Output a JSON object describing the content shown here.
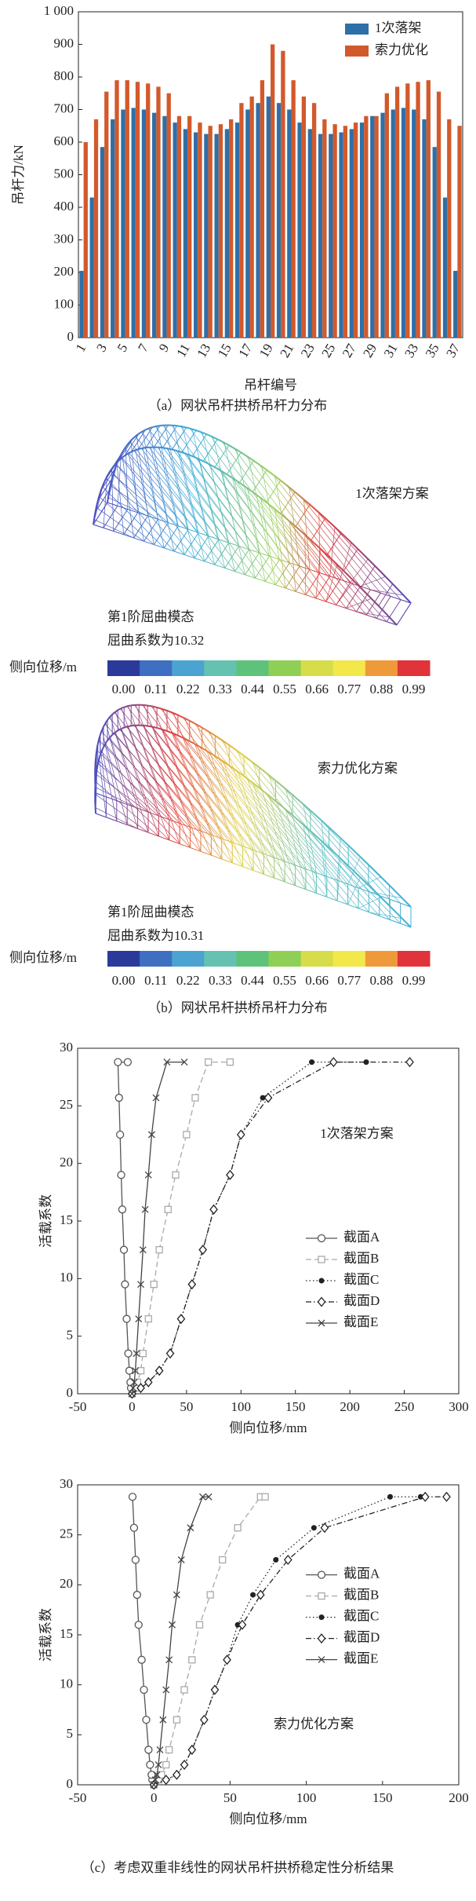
{
  "chart_data": [
    {
      "type": "bar",
      "ylabel": "吊杆力/kN",
      "xlabel": "吊杆编号",
      "caption": "（a）网状吊杆拱桥吊杆力分布",
      "categories": [
        "1",
        null,
        "3",
        null,
        "5",
        null,
        "7",
        null,
        "9",
        null,
        "11",
        null,
        "13",
        null,
        "15",
        null,
        "17",
        null,
        "19",
        null,
        "21",
        null,
        "23",
        null,
        "25",
        null,
        "27",
        null,
        "29",
        null,
        "31",
        null,
        "33",
        null,
        "35",
        null,
        "37"
      ],
      "series": [
        {
          "name": "1次落架",
          "color": "#2f6fa7",
          "values": [
            205,
            430,
            585,
            670,
            700,
            705,
            700,
            690,
            680,
            660,
            640,
            630,
            625,
            625,
            640,
            660,
            700,
            720,
            740,
            720,
            700,
            660,
            640,
            625,
            625,
            630,
            640,
            660,
            680,
            690,
            700,
            705,
            700,
            670,
            585,
            430,
            205
          ]
        },
        {
          "name": "索力优化",
          "color": "#d2592b",
          "values": [
            600,
            670,
            755,
            790,
            790,
            785,
            780,
            770,
            750,
            680,
            680,
            660,
            650,
            655,
            670,
            720,
            740,
            790,
            900,
            880,
            790,
            740,
            720,
            670,
            655,
            650,
            660,
            680,
            680,
            750,
            770,
            780,
            785,
            790,
            755,
            670,
            650
          ]
        }
      ],
      "ylim": [
        0,
        1000
      ],
      "yticks": [
        0,
        100,
        200,
        300,
        400,
        500,
        600,
        700,
        800,
        900,
        {
          "value": 1000,
          "label": "1 000"
        }
      ],
      "legend": "upper right"
    },
    {
      "type": "line",
      "ylabel": "活载系数",
      "xlabel": "侧向位移/mm",
      "annotation": "1次落架方案",
      "xlim": [
        -50,
        300
      ],
      "xticks": [
        -50,
        0,
        50,
        100,
        150,
        200,
        250,
        300
      ],
      "ylim": [
        0,
        30
      ],
      "yticks": [
        0,
        5,
        10,
        15,
        20,
        25,
        30
      ],
      "legend": "center right",
      "series": [
        {
          "name": "截面A",
          "color": "#555555",
          "dash": "solid",
          "marker": "circle",
          "x": [
            0,
            -1,
            -1.5,
            -2.5,
            -3.5,
            -5,
            -6.5,
            -7.5,
            -9,
            -10,
            -11,
            -12,
            -13,
            -4
          ],
          "values": [
            0,
            0.5,
            1,
            2,
            3.5,
            6.5,
            9.5,
            12.5,
            16,
            19,
            22.5,
            25.7,
            28.8,
            28.8
          ]
        },
        {
          "name": "截面B",
          "color": "#aaaaaa",
          "dash": "dashed",
          "marker": "square",
          "x": [
            0,
            3,
            5,
            8,
            10,
            15,
            20,
            25,
            33,
            40,
            50,
            58,
            70,
            90
          ],
          "values": [
            0,
            0.5,
            1,
            2,
            3.5,
            6.5,
            9.5,
            12.5,
            16,
            19,
            22.5,
            25.7,
            28.8,
            28.8
          ]
        },
        {
          "name": "截面C",
          "color": "#222222",
          "dash": "dotted",
          "marker": "dot",
          "x": [
            0,
            8,
            15,
            25,
            35,
            45,
            55,
            65,
            75,
            90,
            100,
            120,
            165,
            215
          ],
          "values": [
            0,
            0.5,
            1,
            2,
            3.5,
            6.5,
            9.5,
            12.5,
            16,
            19,
            22.5,
            25.7,
            28.8,
            28.8
          ]
        },
        {
          "name": "截面D",
          "color": "#222222",
          "dash": "dashdot",
          "marker": "diamond",
          "x": [
            0,
            8,
            15,
            25,
            35,
            45,
            55,
            65,
            75,
            90,
            100,
            125,
            185,
            255
          ],
          "values": [
            0,
            0.5,
            1,
            2,
            3.5,
            6.5,
            9.5,
            12.5,
            16,
            19,
            22.5,
            25.7,
            28.8,
            28.8
          ]
        },
        {
          "name": "截面E",
          "color": "#444444",
          "dash": "solid",
          "marker": "x",
          "x": [
            0,
            1,
            2,
            3,
            4,
            6,
            8,
            10,
            12,
            15,
            18,
            22,
            32,
            48
          ],
          "values": [
            0,
            0.5,
            1,
            2,
            3.5,
            6.5,
            9.5,
            12.5,
            16,
            19,
            22.5,
            25.7,
            28.8,
            28.8
          ]
        }
      ]
    },
    {
      "type": "line",
      "ylabel": "活载系数",
      "xlabel": "侧向位移/mm",
      "annotation": "索力优化方案",
      "caption": "（c）考虑双重非线性的网状吊杆拱桥稳定性分析结果",
      "xlim": [
        -50,
        200
      ],
      "xticks": [
        -50,
        0,
        50,
        100,
        150,
        200
      ],
      "ylim": [
        0,
        30
      ],
      "yticks": [
        0,
        5,
        10,
        15,
        20,
        25,
        30
      ],
      "legend": "upper right",
      "series": [
        {
          "name": "截面A",
          "color": "#555555",
          "dash": "solid",
          "marker": "circle",
          "x": [
            0,
            -1,
            -1.5,
            -2.5,
            -3.5,
            -5,
            -6.5,
            -8,
            -10,
            -11,
            -12,
            -13,
            -14
          ],
          "values": [
            0,
            0.5,
            1,
            2,
            3.5,
            6.5,
            9.5,
            12.5,
            16,
            19,
            22.5,
            25.7,
            28.8
          ]
        },
        {
          "name": "截面B",
          "color": "#aaaaaa",
          "dash": "dashed",
          "marker": "square",
          "x": [
            0,
            3,
            5,
            8,
            10,
            15,
            20,
            25,
            30,
            37,
            45,
            55,
            70,
            73
          ],
          "values": [
            0,
            0.5,
            1,
            2,
            3.5,
            6.5,
            9.5,
            12.5,
            16,
            19,
            22.5,
            25.7,
            28.8,
            28.8
          ]
        },
        {
          "name": "截面C",
          "color": "#222222",
          "dash": "dotted",
          "marker": "dot",
          "x": [
            0,
            8,
            15,
            20,
            25,
            33,
            40,
            48,
            55,
            65,
            80,
            105,
            155,
            175
          ],
          "values": [
            0,
            0.5,
            1,
            2,
            3.5,
            6.5,
            9.5,
            12.5,
            16,
            19,
            22.5,
            25.7,
            28.8,
            28.8
          ]
        },
        {
          "name": "截面D",
          "color": "#222222",
          "dash": "dashdot",
          "marker": "diamond",
          "x": [
            0,
            8,
            15,
            20,
            25,
            33,
            40,
            48,
            58,
            70,
            88,
            112,
            178,
            192
          ],
          "values": [
            0,
            0.5,
            1,
            2,
            3.5,
            6.5,
            9.5,
            12.5,
            16,
            19,
            22.5,
            25.7,
            28.8,
            28.8
          ]
        },
        {
          "name": "截面E",
          "color": "#444444",
          "dash": "solid",
          "marker": "x",
          "x": [
            0,
            1,
            2,
            3,
            4,
            6,
            8,
            10,
            12,
            15,
            18,
            24,
            32,
            36
          ],
          "values": [
            0,
            0.5,
            1,
            2,
            3.5,
            6.5,
            9.5,
            12.5,
            16,
            19,
            22.5,
            25.7,
            28.8,
            28.8
          ]
        }
      ]
    }
  ],
  "figure_b": {
    "caption": "（b）网状吊杆拱桥吊杆力分布",
    "colors": [
      "#2b3a9a",
      "#3f6fc0",
      "#4aa3d0",
      "#66c2b0",
      "#5fc27a",
      "#8fcf55",
      "#d7dc4a",
      "#f2e84a",
      "#ef9a3a",
      "#e0343a"
    ],
    "panels": [
      {
        "scheme": "1次落架方案",
        "mode": "第1阶屈曲模态",
        "factor": "屈曲系数为10.32",
        "colorbar_label": "侧向位移/m",
        "colorbar_ticks": [
          "0.00",
          "0.11",
          "0.22",
          "0.33",
          "0.44",
          "0.55",
          "0.66",
          "0.77",
          "0.88",
          "0.99"
        ]
      },
      {
        "scheme": "索力优化方案",
        "mode": "第1阶屈曲模态",
        "factor": "屈曲系数为10.31",
        "colorbar_label": "侧向位移/m",
        "colorbar_ticks": [
          "0.00",
          "0.11",
          "0.22",
          "0.33",
          "0.44",
          "0.55",
          "0.66",
          "0.77",
          "0.88",
          "0.99"
        ]
      }
    ]
  }
}
